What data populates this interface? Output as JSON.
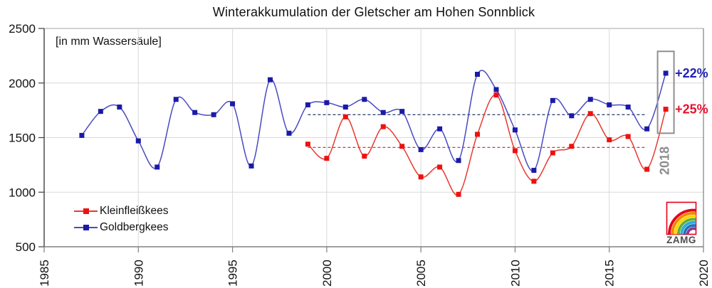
{
  "title": "Winterakkumulation der Gletscher am Hohen Sonnblick",
  "unit_note": "[in mm Wassersäule]",
  "legend": {
    "items": [
      {
        "label": "Kleinfleißkees",
        "line_color": "#e8382f",
        "marker_color": "#ee1111"
      },
      {
        "label": "Goldbergkees",
        "line_color": "#4a4ac2",
        "marker_color": "#1a1aa8"
      }
    ]
  },
  "logo": {
    "text": "ZAMG",
    "border_color": "#e2001a",
    "text_color": "#4d4d4d",
    "rainbow_colors": [
      "#e2001a",
      "#f18700",
      "#ffd500",
      "#5fb130",
      "#2fa8df",
      "#1d71b8",
      "#93368c"
    ]
  },
  "chart_data": {
    "type": "line",
    "title": "Winterakkumulation der Gletscher am Hohen Sonnblick",
    "unit_label": "[in mm Wassersäule]",
    "xlim": [
      1985,
      2020
    ],
    "ylim": [
      500,
      2500
    ],
    "x_ticks": [
      1985,
      1990,
      1995,
      2000,
      2005,
      2010,
      2015,
      2020
    ],
    "y_ticks": [
      500,
      1000,
      1500,
      2000,
      2500
    ],
    "grid": true,
    "legend_position": "lower-left",
    "series": [
      {
        "name": "Goldbergkees",
        "line_color": "#4a4ac2",
        "marker_color": "#1a1aa8",
        "x": [
          1987,
          1988,
          1989,
          1990,
          1991,
          1992,
          1993,
          1994,
          1995,
          1996,
          1997,
          1998,
          1999,
          2000,
          2001,
          2002,
          2003,
          2004,
          2005,
          2006,
          2007,
          2008,
          2009,
          2010,
          2011,
          2012,
          2013,
          2014,
          2015,
          2016,
          2017,
          2018
        ],
        "values": [
          1520,
          1740,
          1780,
          1470,
          1230,
          1850,
          1730,
          1710,
          1810,
          1240,
          2030,
          1540,
          1800,
          1820,
          1780,
          1850,
          1730,
          1740,
          1390,
          1580,
          1290,
          2080,
          1940,
          1570,
          1200,
          1840,
          1700,
          1850,
          1800,
          1780,
          1580,
          2090
        ],
        "mean_line": {
          "value": 1710,
          "x_start": 1999,
          "x_end": 2017,
          "color": "#1f3864"
        }
      },
      {
        "name": "Kleinfleißkees",
        "line_color": "#e8382f",
        "marker_color": "#ee1111",
        "x": [
          1999,
          2000,
          2001,
          2002,
          2003,
          2004,
          2005,
          2006,
          2007,
          2008,
          2009,
          2010,
          2011,
          2012,
          2013,
          2014,
          2015,
          2016,
          2017,
          2018
        ],
        "values": [
          1440,
          1310,
          1690,
          1330,
          1600,
          1420,
          1140,
          1230,
          980,
          1530,
          1890,
          1380,
          1100,
          1360,
          1420,
          1720,
          1480,
          1510,
          1210,
          1760
        ],
        "mean_line": {
          "value": 1410,
          "x_start": 1999,
          "x_end": 2017,
          "color": "#d02020"
        }
      }
    ],
    "highlight_box": {
      "year": 2018,
      "value_from": 1540,
      "value_to": 2290,
      "border_color": "#8f8f8f",
      "label": "2018",
      "label_color": "#8c8c8c"
    },
    "annotations": [
      {
        "text": "+22%",
        "year": 2018,
        "value": 2090,
        "color": "#2222b4"
      },
      {
        "text": "+25%",
        "year": 2018,
        "value": 1760,
        "color": "#e8112d"
      }
    ],
    "colors": {
      "grid": "#d9d9d9",
      "top_border": "#a6a6a6",
      "right_border": "#666666",
      "left_axis": "#404040",
      "bottom_axis": "#808080",
      "tick_label": "#111111"
    }
  }
}
